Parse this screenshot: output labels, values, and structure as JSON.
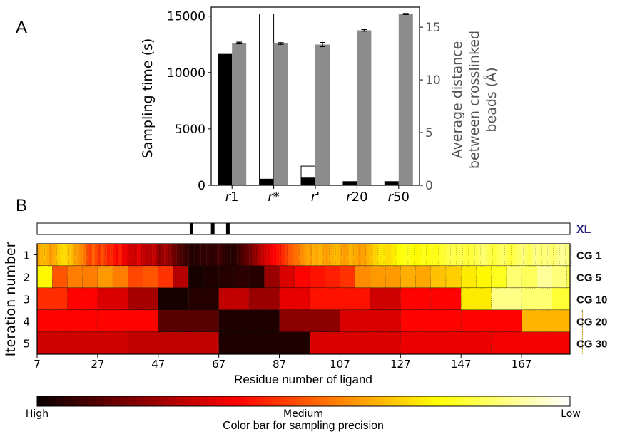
{
  "panels": {
    "a": "A",
    "b": "B"
  },
  "chart_data": [
    {
      "type": "bar",
      "categories": [
        {
          "italic": "r",
          "suffix": "1"
        },
        {
          "italic": "r",
          "suffix": "*"
        },
        {
          "italic": "r",
          "suffix": "'"
        },
        {
          "italic": "r",
          "suffix": "20"
        },
        {
          "italic": "r",
          "suffix": "50"
        }
      ],
      "ylabel": "Sampling time (s)",
      "ylabel_right": [
        "Average distance",
        "between crosslinked",
        "beads  (Å)"
      ],
      "ylim": [
        0,
        15800
      ],
      "yticks": [
        0,
        5000,
        10000,
        15000
      ],
      "ylim_right": [
        0,
        16.9
      ],
      "yticks_right": [
        0,
        5,
        10,
        15
      ],
      "series": [
        {
          "name": "sampling_time_total",
          "style": "white-outline",
          "axis": "left",
          "values": [
            0,
            15200,
            1700,
            0,
            0
          ]
        },
        {
          "name": "sampling_time",
          "style": "black",
          "axis": "left",
          "values": [
            11650,
            580,
            680,
            360,
            360
          ]
        },
        {
          "name": "crosslink_distance",
          "style": "gray",
          "axis": "right",
          "values": [
            13.5,
            13.45,
            13.35,
            14.7,
            16.25
          ],
          "errors": [
            0.08,
            0.08,
            0.2,
            0.08,
            0.05
          ]
        }
      ],
      "colors": {
        "black": "#000000",
        "gray": "#8c8c8c"
      }
    },
    {
      "type": "heatmap",
      "xlabel": "Residue number of ligand",
      "ylabel": "Iteration number",
      "xticks": [
        7,
        27,
        47,
        67,
        87,
        107,
        127,
        147,
        167
      ],
      "xrange": [
        7,
        183
      ],
      "yticks": [
        1,
        2,
        3,
        4,
        5
      ],
      "crosslinks": {
        "label": "XL",
        "residues": [
          58,
          65,
          70
        ]
      },
      "rows": [
        {
          "iteration": 1,
          "label": "CG 1",
          "block": 1,
          "values": [
            0.62,
            0.64,
            0.66,
            0.63,
            0.6,
            0.62,
            0.66,
            0.68,
            0.7,
            0.69,
            0.67,
            0.65,
            0.62,
            0.6,
            0.58,
            0.55,
            0.5,
            0.46,
            0.52,
            0.48,
            0.45,
            0.5,
            0.46,
            0.42,
            0.44,
            0.4,
            0.38,
            0.42,
            0.36,
            0.34,
            0.32,
            0.3,
            0.3,
            0.34,
            0.3,
            0.28,
            0.27,
            0.26,
            0.3,
            0.24,
            0.2,
            0.22,
            0.24,
            0.2,
            0.18,
            0.15,
            0.12,
            0.1,
            0.08,
            0.06,
            0.05,
            0.04,
            0.04,
            0.05,
            0.06,
            0.05,
            0.06,
            0.05,
            0.06,
            0.07,
            0.08,
            0.06,
            0.05,
            0.04,
            0.04,
            0.05,
            0.07,
            0.1,
            0.12,
            0.14,
            0.16,
            0.2,
            0.22,
            0.26,
            0.28,
            0.32,
            0.34,
            0.36,
            0.38,
            0.4,
            0.42,
            0.44,
            0.47,
            0.5,
            0.52,
            0.54,
            0.56,
            0.58,
            0.6,
            0.62,
            0.6,
            0.63,
            0.62,
            0.64,
            0.62,
            0.6,
            0.62,
            0.63,
            0.65,
            0.64,
            0.62,
            0.6,
            0.62,
            0.64,
            0.63,
            0.62,
            0.6,
            0.61,
            0.62,
            0.64,
            0.66,
            0.68,
            0.7,
            0.71,
            0.72,
            0.7,
            0.7,
            0.72,
            0.74,
            0.75,
            0.76,
            0.77,
            0.78,
            0.76,
            0.75,
            0.74,
            0.76,
            0.78,
            0.77,
            0.76,
            0.78,
            0.77,
            0.78,
            0.79,
            0.8,
            0.82,
            0.83,
            0.82,
            0.81,
            0.83,
            0.82,
            0.81,
            0.8,
            0.81,
            0.82,
            0.83,
            0.85,
            0.86,
            0.84,
            0.82,
            0.8,
            0.81,
            0.83,
            0.85,
            0.84,
            0.82,
            0.8,
            0.82,
            0.84,
            0.86,
            0.88,
            0.85,
            0.83,
            0.86,
            0.89,
            0.87,
            0.86,
            0.87,
            0.88,
            0.86,
            0.85,
            0.87,
            0.89,
            0.9,
            0.88,
            0.87,
            0.86
          ]
        },
        {
          "iteration": 2,
          "label": "CG 5",
          "block": 5,
          "values": [
            0.74,
            0.5,
            0.56,
            0.56,
            0.6,
            0.56,
            0.48,
            0.5,
            0.45,
            0.26,
            0.02,
            0.03,
            0.04,
            0.05,
            0.04,
            0.22,
            0.32,
            0.38,
            0.4,
            0.42,
            0.45,
            0.58,
            0.6,
            0.6,
            0.63,
            0.62,
            0.66,
            0.68,
            0.72,
            0.74,
            0.78,
            0.86,
            0.84,
            0.9,
            0.87,
            0.82
          ]
        },
        {
          "iteration": 3,
          "label": "CG 10",
          "block": 10,
          "values": [
            0.44,
            0.38,
            0.32,
            0.24,
            0.02,
            0.04,
            0.28,
            0.22,
            0.34,
            0.4,
            0.4,
            0.3,
            0.38,
            0.38,
            0.72,
            0.88,
            0.86,
            0.8
          ]
        },
        {
          "iteration": 4,
          "label": "CG 20",
          "block": 20,
          "values": [
            0.38,
            0.38,
            0.12,
            0.03,
            0.2,
            0.32,
            0.38,
            0.38,
            0.64,
            0.62
          ]
        },
        {
          "iteration": 5,
          "label": "CG 30",
          "block": 30,
          "values": [
            0.3,
            0.28,
            0.03,
            0.32,
            0.35,
            0.36,
            0.66
          ]
        }
      ],
      "colorbar": {
        "low_end": "High",
        "mid": "Medium",
        "high_end": "Low",
        "title": "Color bar for sampling precision"
      }
    }
  ]
}
